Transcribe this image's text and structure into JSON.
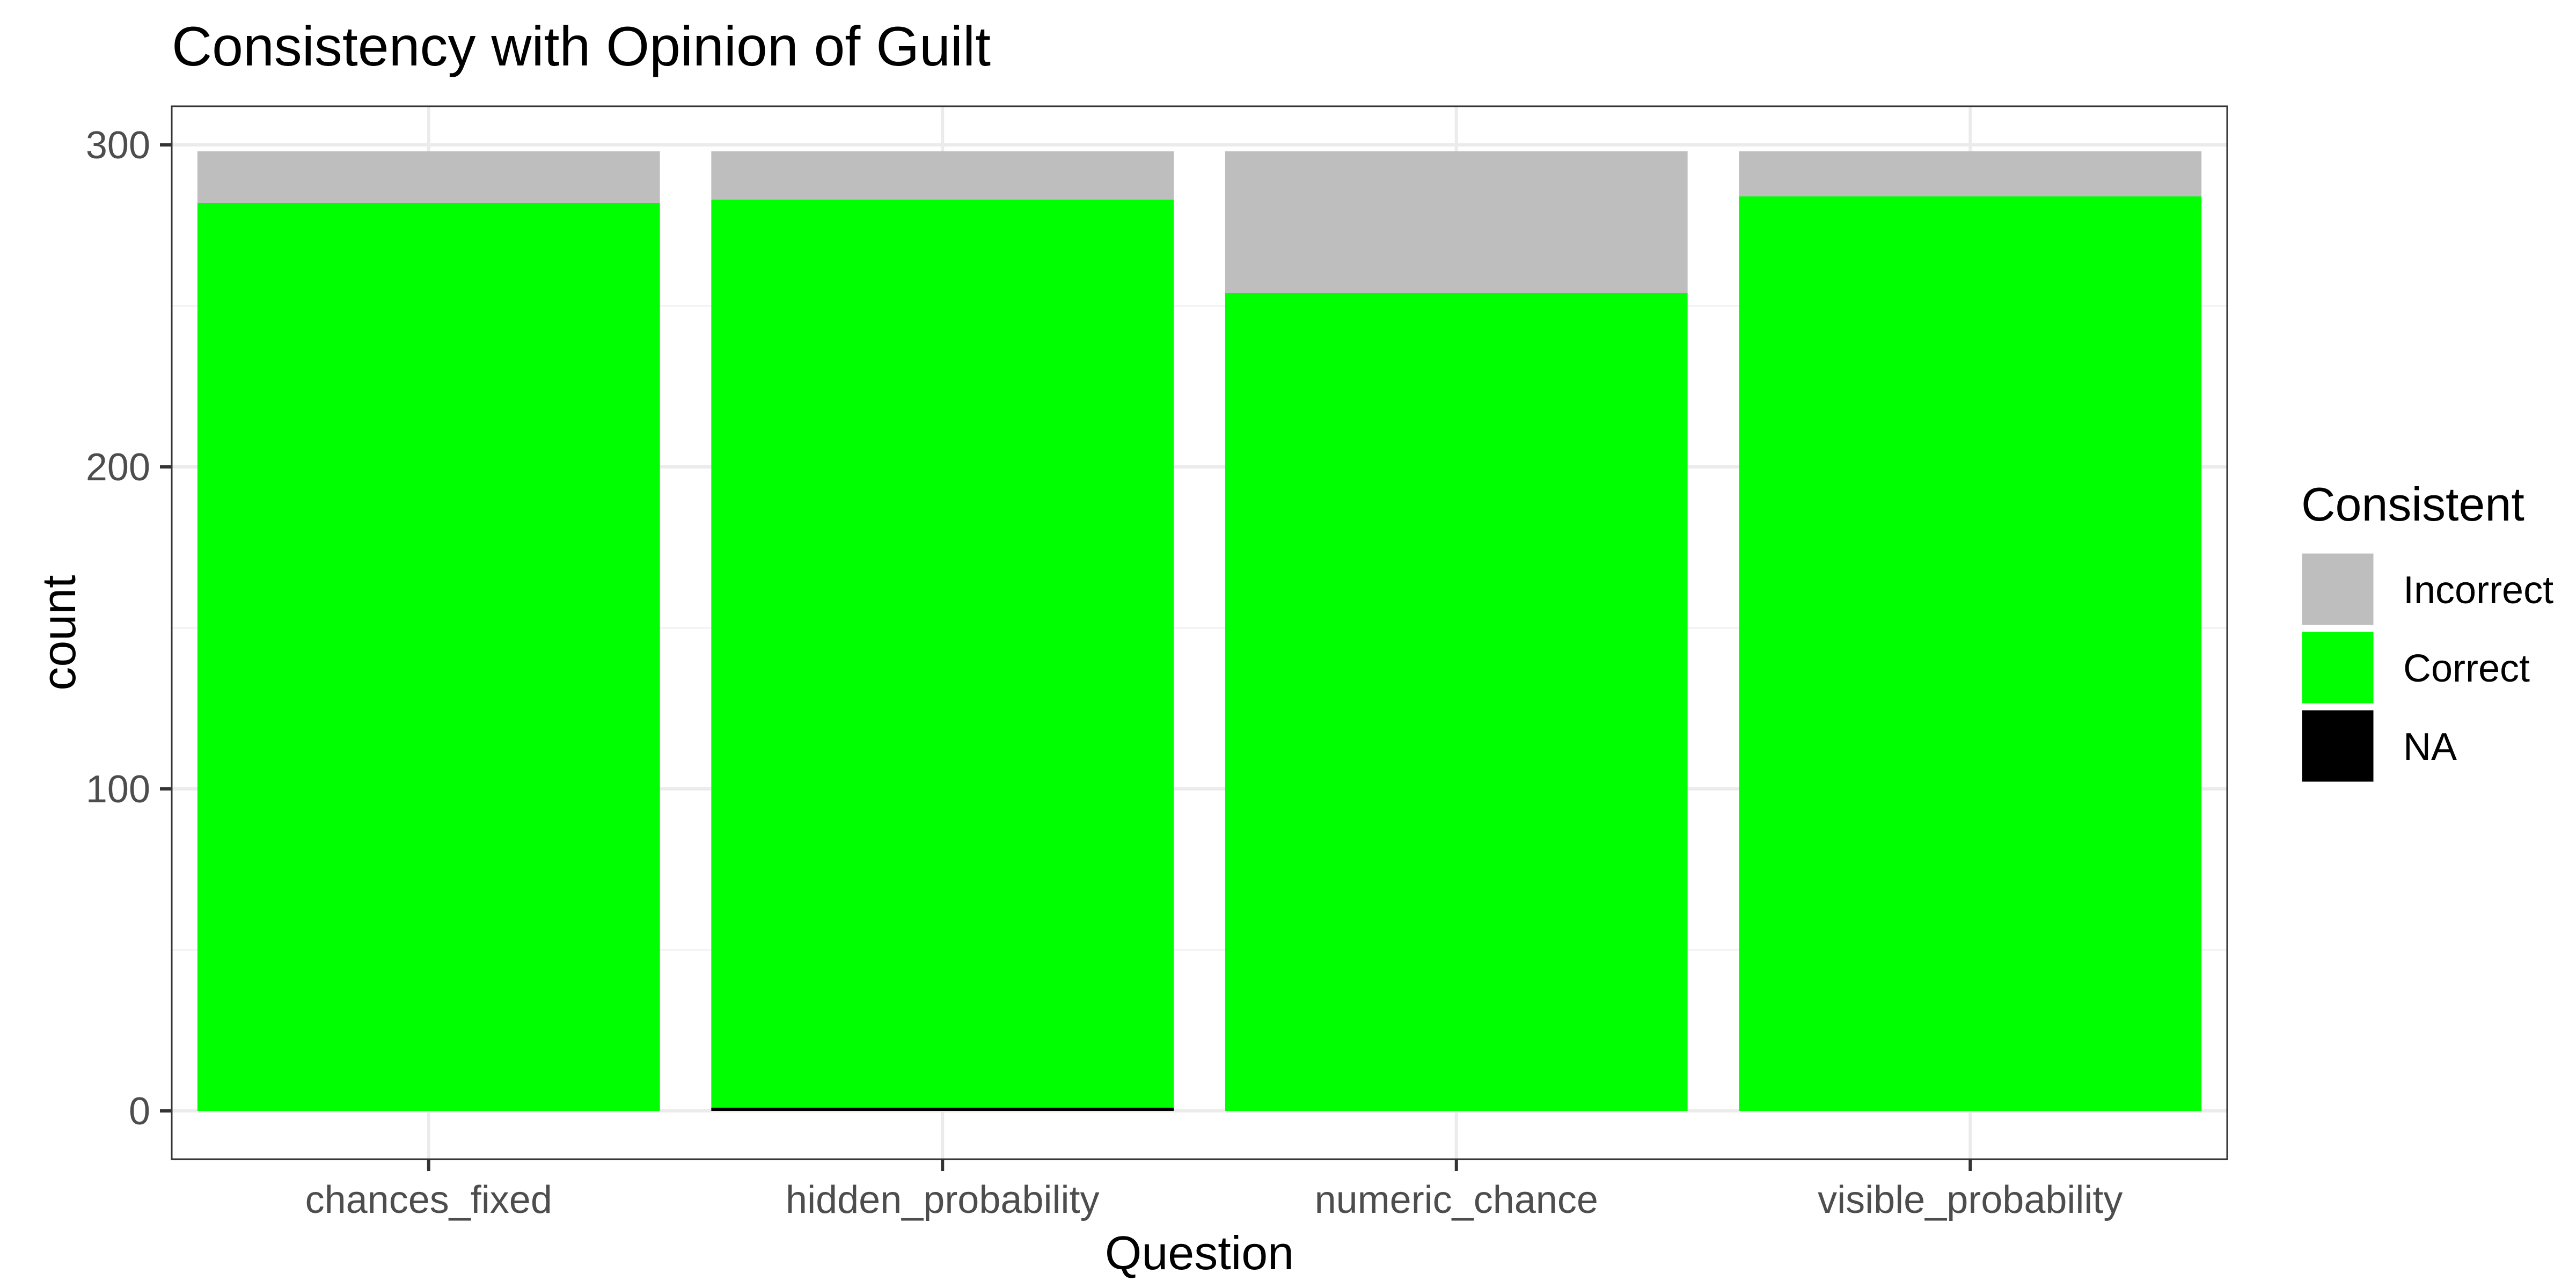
{
  "chart_data": {
    "type": "bar",
    "stacked": true,
    "title": "Consistency with Opinion of Guilt",
    "xlabel": "Question",
    "ylabel": "count",
    "categories": [
      "chances_fixed",
      "hidden_probability",
      "numeric_chance",
      "visible_probability"
    ],
    "series": [
      {
        "name": "Incorrect",
        "color": "#bebebe",
        "values": [
          16,
          15,
          44,
          14
        ]
      },
      {
        "name": "Correct",
        "color": "#00ff00",
        "values": [
          282,
          282,
          254,
          284
        ]
      },
      {
        "name": "NA",
        "color": "#000000",
        "values": [
          0,
          1,
          0,
          0
        ]
      }
    ],
    "stack_order_bottom_to_top": [
      "NA",
      "Correct",
      "Incorrect"
    ],
    "ylim": [
      -15,
      312
    ],
    "yticks": [
      0,
      100,
      200,
      300
    ],
    "ytick_labels": [
      "0",
      "100",
      "200",
      "300"
    ],
    "grid": true,
    "legend": {
      "title": "Consistent",
      "placement": "right",
      "entries": [
        "Incorrect",
        "Correct",
        "NA"
      ]
    },
    "theme": {
      "panel_border": "#333333",
      "grid_major": "#ebebeb",
      "grid_minor": "#f2f2f2",
      "tick_color": "#333333"
    }
  }
}
